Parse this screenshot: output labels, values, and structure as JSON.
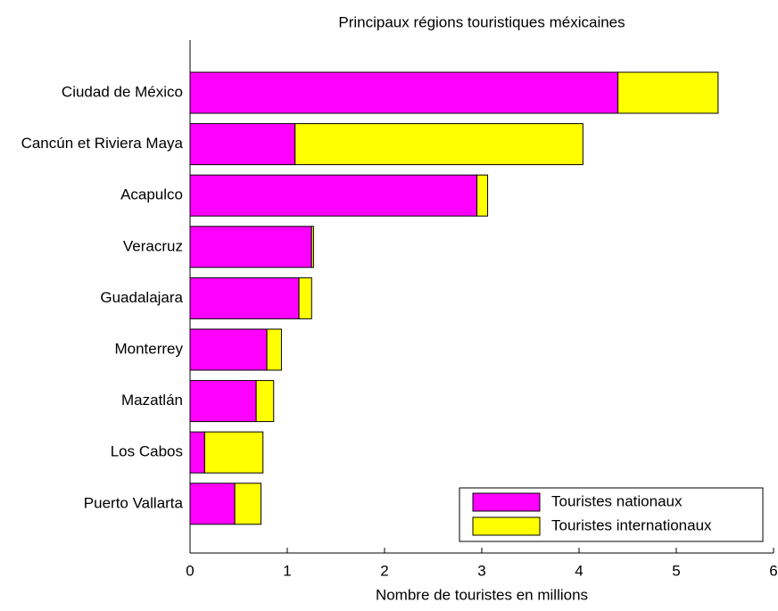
{
  "chart_data": {
    "type": "barh_stacked",
    "title": "Principaux régions touristiques méxicaines",
    "xlabel": "Nombre de touristes en millions",
    "categories": [
      "Ciudad de México",
      "Cancún et Riviera Maya",
      "Acapulco",
      "Veracruz",
      "Guadalajara",
      "Monterrey",
      "Mazatlán",
      "Los Cabos",
      "Puerto Vallarta"
    ],
    "series": [
      {
        "name": "Touristes nationaux",
        "color": "#ff00ff",
        "values": [
          4.4,
          1.08,
          2.95,
          1.25,
          1.12,
          0.79,
          0.68,
          0.15,
          0.46
        ]
      },
      {
        "name": "Touristes internationaux",
        "color": "#ffff00",
        "values": [
          1.03,
          2.96,
          0.11,
          0.02,
          0.13,
          0.15,
          0.18,
          0.6,
          0.27
        ]
      }
    ],
    "xlim": [
      0,
      6
    ],
    "xticks": [
      0,
      1,
      2,
      3,
      4,
      5,
      6
    ],
    "legend": "lower right"
  }
}
